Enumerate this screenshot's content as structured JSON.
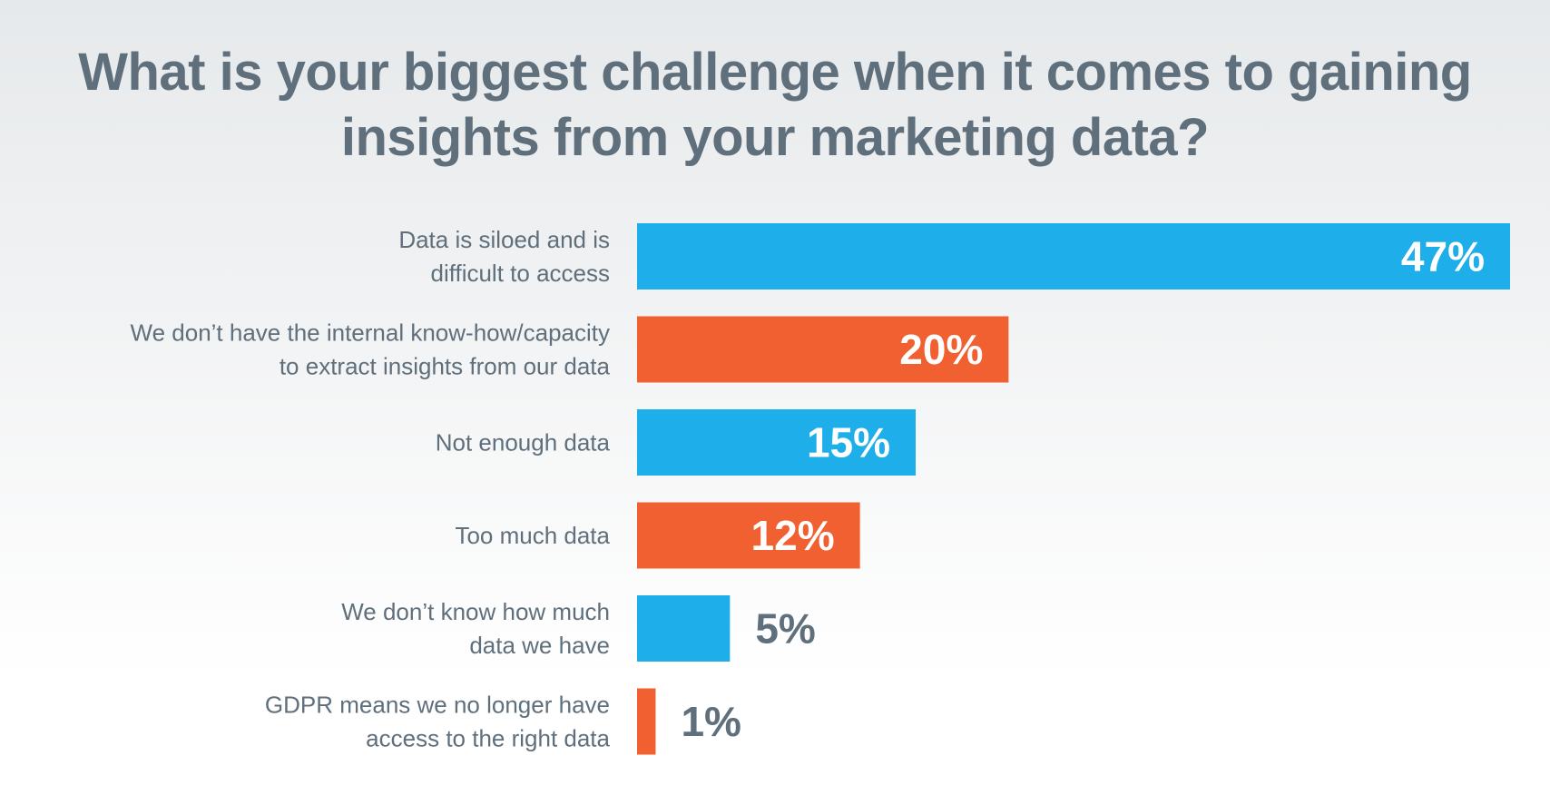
{
  "chart_data": {
    "type": "bar",
    "orientation": "horizontal",
    "title": [
      "What is your biggest challenge when it comes to gaining",
      "insights from your marketing data?"
    ],
    "categories": [
      [
        "Data is siloed and is",
        "difficult to access"
      ],
      [
        "We don’t have the internal know-how/capacity",
        "to extract insights from our data"
      ],
      [
        "Not enough data"
      ],
      [
        "Too much data"
      ],
      [
        "We don’t know how much",
        "data we have"
      ],
      [
        "GDPR means we no longer have",
        "access to the right data"
      ]
    ],
    "values": [
      47,
      20,
      15,
      12,
      5,
      1
    ],
    "value_labels": [
      "47%",
      "20%",
      "15%",
      "12%",
      "5%",
      "1%"
    ],
    "bar_colors": [
      "#1eaeea",
      "#f06030",
      "#1eaeea",
      "#f06030",
      "#1eaeea",
      "#f06030"
    ],
    "value_label_colors": {
      "inside": "#ffffff",
      "outside": "#5f6f7b"
    },
    "xlim": [
      0,
      47
    ],
    "grid": false,
    "legend": "none"
  }
}
